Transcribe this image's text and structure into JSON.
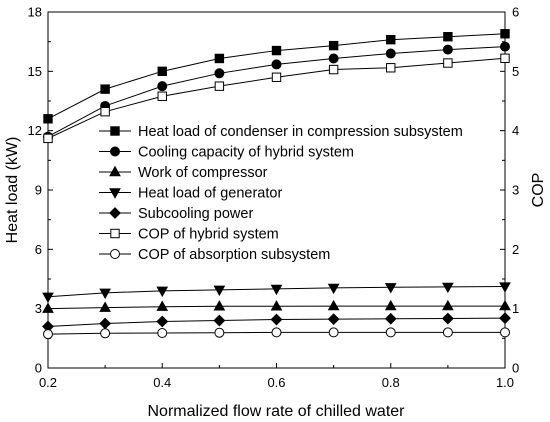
{
  "chart_data": {
    "type": "line",
    "xlabel": "Normalized flow rate of chilled water",
    "ylabel_left": "Heat load (kW)",
    "ylabel_right": "COP",
    "x": [
      0.2,
      0.3,
      0.4,
      0.5,
      0.6,
      0.7,
      0.8,
      0.9,
      1.0
    ],
    "xlim": [
      0.2,
      1.0
    ],
    "xticks": [
      "0.2",
      "0.4",
      "0.6",
      "0.8",
      "1.0"
    ],
    "ylim_left": [
      0,
      18
    ],
    "yticks_left": [
      "0",
      "3",
      "6",
      "9",
      "12",
      "15",
      "18"
    ],
    "ylim_right": [
      0,
      6
    ],
    "yticks_right": [
      "0",
      "1",
      "2",
      "3",
      "4",
      "5",
      "6"
    ],
    "grid": false,
    "legend_position": "center",
    "series": [
      {
        "name": "Heat load of condenser in compression subsystem",
        "axis": "left",
        "marker": "square-filled",
        "values": [
          12.6,
          14.1,
          15.0,
          15.65,
          16.05,
          16.3,
          16.6,
          16.75,
          16.9
        ]
      },
      {
        "name": "Cooling capacity of hybrid system",
        "axis": "left",
        "marker": "circle-filled",
        "values": [
          11.7,
          13.25,
          14.25,
          14.9,
          15.35,
          15.65,
          15.9,
          16.1,
          16.25
        ]
      },
      {
        "name": "Work of compressor",
        "axis": "left",
        "marker": "triangle-up-filled",
        "values": [
          3.0,
          3.05,
          3.1,
          3.12,
          3.12,
          3.13,
          3.13,
          3.13,
          3.13
        ]
      },
      {
        "name": "Heat load of generator",
        "axis": "left",
        "marker": "triangle-down-filled",
        "values": [
          3.6,
          3.8,
          3.9,
          3.95,
          4.0,
          4.05,
          4.08,
          4.1,
          4.12
        ]
      },
      {
        "name": "Subcooling power",
        "axis": "left",
        "marker": "diamond-filled",
        "values": [
          2.1,
          2.25,
          2.35,
          2.4,
          2.45,
          2.47,
          2.49,
          2.5,
          2.52
        ]
      },
      {
        "name": "COP of hybrid system",
        "axis": "right",
        "marker": "square-open",
        "values": [
          3.87,
          4.32,
          4.58,
          4.75,
          4.9,
          5.03,
          5.06,
          5.14,
          5.22
        ]
      },
      {
        "name": "COP of absorption subsystem",
        "axis": "right",
        "marker": "circle-open",
        "values": [
          0.57,
          0.585,
          0.59,
          0.595,
          0.6,
          0.6,
          0.6,
          0.6,
          0.6
        ]
      }
    ]
  }
}
